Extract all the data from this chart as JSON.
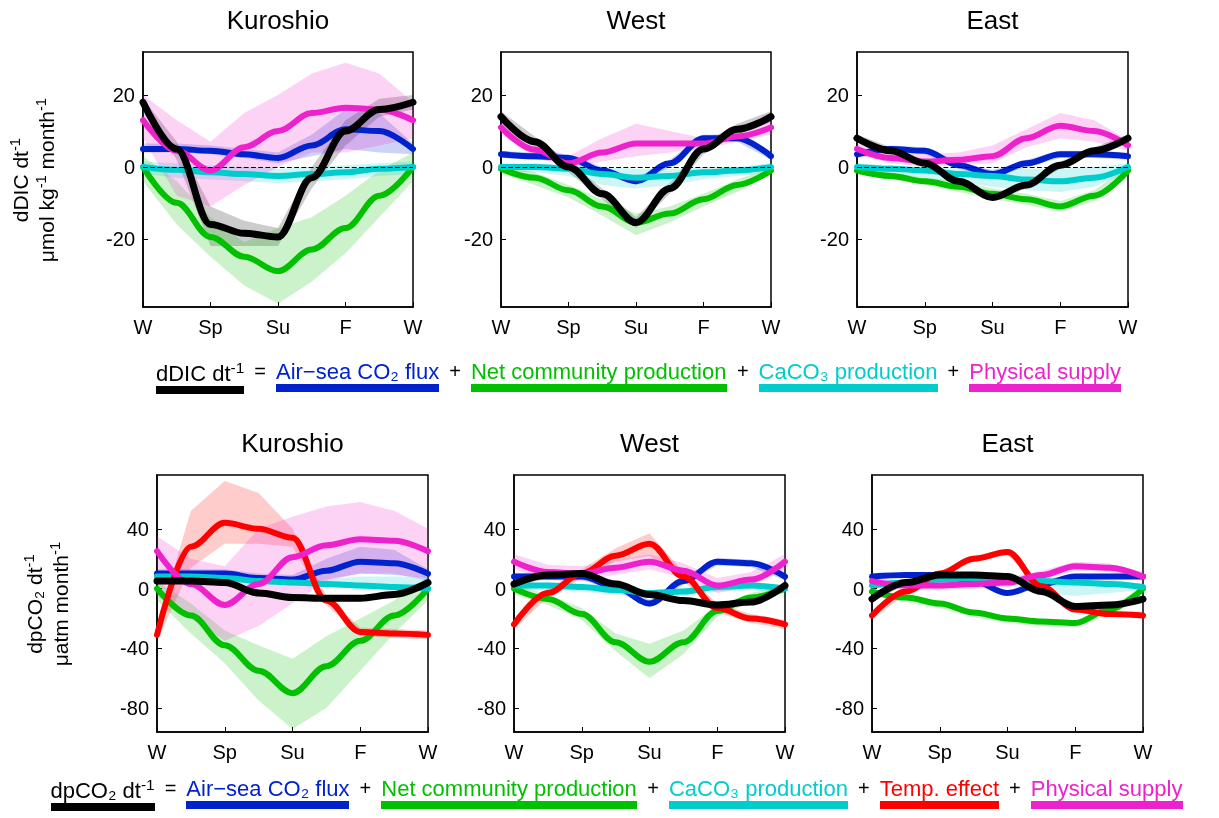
{
  "chart_data": [
    {
      "type": "line",
      "title": "Kuroshio",
      "ylabel": "dDIC dt$^{-1}$\nμmol kg$^{-1}$ month$^{-1}$",
      "legend": "bottom",
      "annotations": [
        "=",
        "+",
        "+",
        "+"
      ],
      "categories": [
        "W",
        null,
        "Sp",
        null,
        "Su",
        null,
        "F",
        null,
        "W"
      ],
      "ylim": [
        -39,
        32
      ],
      "yticks": [
        -20,
        0,
        20
      ],
      "ref_lines": [
        {
          "axis": "y",
          "value": 0,
          "line_style": "dashed",
          "color": "#000000"
        }
      ],
      "series": [
        {
          "name": "dDIC dt$^{-1}$",
          "color": "#000000",
          "values": [
            18,
            5,
            -16,
            -18.5,
            -19.5,
            -3,
            10,
            16,
            18
          ],
          "lower": [
            16,
            2,
            -22,
            -22,
            -22,
            -6,
            6,
            14,
            16
          ],
          "upper": [
            19,
            7,
            -11,
            -15,
            -17,
            0,
            13,
            19,
            20
          ]
        },
        {
          "name": "Air−sea CO₂ flux",
          "color": "#0022cc",
          "values": [
            5,
            5,
            4.5,
            3.5,
            2.5,
            6,
            10.5,
            10,
            5
          ],
          "lower": [
            4,
            4,
            3.5,
            2.5,
            1,
            3,
            5,
            4,
            3.5
          ],
          "upper": [
            6.5,
            6.5,
            6,
            5,
            4,
            9,
            16,
            15,
            6.5
          ]
        },
        {
          "name": "Net community production",
          "color": "#00c000",
          "values": [
            0,
            -10,
            -19.5,
            -25,
            -29,
            -23,
            -17,
            -8,
            0
          ],
          "lower": [
            -4,
            -16,
            -25,
            -33,
            -38,
            -32,
            -24,
            -14,
            -4
          ],
          "upper": [
            3,
            -4,
            -14,
            -21,
            -17,
            -14,
            -8,
            -1,
            4
          ]
        },
        {
          "name": "CaCO₃ production",
          "color": "#00cccc",
          "values": [
            0,
            -0.8,
            -1.5,
            -2,
            -2.5,
            -2,
            -1.5,
            -0.5,
            0
          ],
          "lower": [
            -2,
            -3,
            -3.5,
            -4,
            -4.5,
            -4,
            -3.5,
            -2.5,
            -2
          ],
          "upper": [
            1.5,
            1,
            0.5,
            0,
            -0.5,
            0,
            0.5,
            1,
            1.5
          ]
        },
        {
          "name": "Physical supply",
          "color": "#ee22cc",
          "values": [
            13,
            4.5,
            -1,
            5.5,
            10,
            15,
            16.5,
            16,
            13
          ],
          "lower": [
            8,
            -8,
            -11,
            -5,
            0,
            4,
            4,
            6,
            8
          ],
          "upper": [
            20,
            13,
            7,
            15,
            20,
            26,
            29,
            26,
            18
          ]
        }
      ]
    },
    {
      "type": "line",
      "title": "West",
      "categories": [
        "W",
        null,
        "Sp",
        null,
        "Su",
        null,
        "F",
        null,
        "W"
      ],
      "ylim": [
        -39,
        32
      ],
      "yticks": [
        -20,
        0,
        20
      ],
      "ref_lines": [
        {
          "axis": "y",
          "value": 0,
          "line_style": "dashed",
          "color": "#000000"
        }
      ],
      "series": [
        {
          "color": "#000000",
          "values": [
            14,
            7,
            0,
            -7.5,
            -15.5,
            -6,
            5,
            10.5,
            14
          ],
          "lower": [
            12.5,
            5.5,
            -1.5,
            -9,
            -17,
            -7.5,
            3.5,
            9,
            12.5
          ],
          "upper": [
            15.5,
            8.5,
            1.5,
            -6,
            -14,
            -4.5,
            6.5,
            12,
            15.5
          ]
        },
        {
          "color": "#0022cc",
          "values": [
            3.5,
            3,
            2.5,
            -1,
            -4,
            1,
            8,
            8,
            3
          ],
          "lower": [
            2.5,
            2,
            1.5,
            -2,
            -5,
            0,
            7,
            7,
            2
          ],
          "upper": [
            4.5,
            4,
            3.5,
            0,
            -3,
            2,
            9,
            9,
            4
          ]
        },
        {
          "color": "#00c000",
          "values": [
            -0.5,
            -3,
            -6.5,
            -11,
            -15.5,
            -13,
            -9,
            -5,
            -1
          ],
          "lower": [
            -2,
            -5,
            -8.5,
            -13.5,
            -19,
            -15.5,
            -11,
            -7,
            -2
          ],
          "upper": [
            0.5,
            -1.5,
            -5,
            -9,
            -13,
            -11,
            -7.5,
            -3.5,
            0
          ]
        },
        {
          "color": "#00cccc",
          "values": [
            0,
            0,
            -0.5,
            -2,
            -3,
            -2.5,
            -1.5,
            -1,
            0
          ],
          "lower": [
            -1.5,
            -1.5,
            -2.5,
            -5,
            -6,
            -5,
            -3.5,
            -2.5,
            -1.5
          ],
          "upper": [
            1,
            1,
            0.5,
            0,
            -0.5,
            -0.5,
            0,
            0,
            1
          ]
        },
        {
          "color": "#ee22cc",
          "values": [
            11,
            4.8,
            1,
            4,
            6.5,
            6.5,
            6.5,
            8.5,
            11
          ],
          "lower": [
            9,
            3,
            -0.5,
            1.5,
            3,
            4,
            5,
            7,
            9
          ],
          "upper": [
            13,
            6.5,
            3,
            8,
            12,
            10,
            8,
            10.5,
            13
          ]
        }
      ]
    },
    {
      "type": "line",
      "title": "East",
      "categories": [
        "W",
        null,
        "Sp",
        null,
        "Su",
        null,
        "F",
        null,
        "W"
      ],
      "ylim": [
        -39,
        32
      ],
      "yticks": [
        -20,
        0,
        20
      ],
      "ref_lines": [
        {
          "axis": "y",
          "value": 0,
          "line_style": "dashed",
          "color": "#000000"
        }
      ],
      "series": [
        {
          "color": "#000000",
          "values": [
            8,
            4.5,
            1,
            -4,
            -8.5,
            -5,
            0.5,
            4.5,
            8
          ],
          "lower": [
            7,
            3.5,
            0,
            -5,
            -9.5,
            -6,
            -0.5,
            3.5,
            7
          ],
          "upper": [
            9,
            5.5,
            2,
            -3,
            -7.5,
            -4,
            1.5,
            5.5,
            9
          ]
        },
        {
          "color": "#0022cc",
          "values": [
            3.5,
            5,
            4.5,
            0.5,
            -2,
            1,
            3.5,
            3.5,
            3
          ],
          "lower": [
            2.5,
            4,
            3.5,
            -0.5,
            -3,
            0,
            2.5,
            2.5,
            2
          ],
          "upper": [
            4.5,
            6,
            5.5,
            1.5,
            -1,
            2,
            4.5,
            4.5,
            4
          ]
        },
        {
          "color": "#00c000",
          "values": [
            -1,
            -2.5,
            -4,
            -5.5,
            -7.5,
            -9,
            -11,
            -8,
            -1
          ],
          "lower": [
            -2,
            -3.5,
            -5,
            -7,
            -9,
            -10.5,
            -12.5,
            -9.5,
            -2
          ],
          "upper": [
            0,
            -1.5,
            -3,
            -4,
            -6,
            -7.5,
            -9.5,
            -6.5,
            0
          ]
        },
        {
          "color": "#00cccc",
          "values": [
            0,
            -0.5,
            -1,
            -2,
            -2.5,
            -3.5,
            -4,
            -3,
            0
          ],
          "lower": [
            -1.5,
            -2,
            -3,
            -4.5,
            -5.5,
            -6.5,
            -7,
            -5.5,
            -1.5
          ],
          "upper": [
            1,
            0.5,
            0,
            -0.5,
            -0.5,
            -0.5,
            -0.5,
            0,
            1
          ]
        },
        {
          "color": "#ee22cc",
          "values": [
            5,
            2.5,
            1.5,
            2,
            3,
            8,
            11.5,
            10,
            6
          ],
          "lower": [
            3.5,
            1,
            0,
            0.5,
            1,
            5.5,
            8,
            7,
            4.5
          ],
          "upper": [
            6.5,
            4,
            3.5,
            4,
            6,
            10.5,
            15,
            13,
            7.5
          ]
        }
      ]
    },
    {
      "type": "line",
      "title": "Kuroshio",
      "ylabel": "dpCO₂ dt$^{-1}$\nμatm month$^{-1}$",
      "legend": "bottom",
      "annotations": [
        "=",
        "+",
        "+",
        "+",
        "+"
      ],
      "categories": [
        "W",
        null,
        "Sp",
        null,
        "Su",
        null,
        "F",
        null,
        "W"
      ],
      "ylim": [
        -96,
        76
      ],
      "yticks": [
        -80,
        -40,
        0,
        40
      ],
      "series": [
        {
          "name": "dpCO₂ dt$^{-1}$",
          "color": "#000000",
          "values": [
            5,
            5,
            4,
            -3,
            -6,
            -6.5,
            -6.5,
            -4,
            4
          ],
          "lower": [
            3,
            3,
            2,
            -5,
            -8,
            -8.5,
            -8.5,
            -6,
            2
          ],
          "upper": [
            7,
            7,
            6,
            -1,
            -4,
            -4.5,
            -4.5,
            -2,
            6
          ]
        },
        {
          "name": "Air−sea CO₂ flux",
          "color": "#0022cc",
          "values": [
            10,
            10,
            10,
            7,
            6,
            12,
            18,
            17,
            10
          ],
          "lower": [
            7,
            7,
            7,
            4,
            3,
            6,
            10,
            9,
            7
          ],
          "upper": [
            13,
            13,
            13,
            10,
            9,
            20,
            28,
            26,
            13
          ]
        },
        {
          "name": "Net community production",
          "color": "#00c000",
          "values": [
            0,
            -18,
            -38,
            -55,
            -70,
            -52,
            -35,
            -18,
            0
          ],
          "lower": [
            -8,
            -30,
            -50,
            -75,
            -94,
            -80,
            -55,
            -30,
            -8
          ],
          "upper": [
            5,
            -10,
            -28,
            -38,
            -47,
            -32,
            -20,
            -8,
            8
          ]
        },
        {
          "name": "CaCO₃ production",
          "color": "#00cccc",
          "values": [
            8,
            8,
            7,
            5,
            4,
            3,
            2,
            1,
            0
          ],
          "lower": [
            6,
            6,
            5,
            3,
            2,
            1,
            0,
            -1,
            -2
          ],
          "upper": [
            10,
            10,
            9,
            7,
            6,
            6,
            8,
            8,
            8
          ]
        },
        {
          "name": "Temp. effect",
          "color": "#ff0000",
          "values": [
            -31,
            28,
            44,
            40,
            34,
            -8,
            -29,
            -30,
            -31
          ],
          "lower": [
            -35,
            14,
            30,
            30,
            28,
            -11,
            -32,
            -33,
            -34
          ],
          "upper": [
            -25,
            52,
            72,
            64,
            40,
            -5,
            -26,
            -27,
            -28
          ]
        },
        {
          "name": "Physical supply",
          "color": "#ee22cc",
          "values": [
            25,
            3,
            -11,
            3,
            21,
            29,
            33,
            32,
            25
          ],
          "lower": [
            -5,
            -20,
            -35,
            -25,
            -10,
            5,
            10,
            10,
            5
          ],
          "upper": [
            35,
            20,
            15,
            40,
            48,
            55,
            58,
            52,
            40
          ]
        }
      ]
    },
    {
      "type": "line",
      "title": "West",
      "categories": [
        "W",
        null,
        "Sp",
        null,
        "Su",
        null,
        "F",
        null,
        "W"
      ],
      "ylim": [
        -96,
        76
      ],
      "yticks": [
        -80,
        -40,
        0,
        40
      ],
      "series": [
        {
          "color": "#000000",
          "values": [
            3,
            9,
            10,
            3,
            -4,
            -8,
            -11,
            -9,
            2
          ],
          "lower": [
            1,
            7,
            8,
            1,
            -6,
            -10,
            -13,
            -11,
            0
          ],
          "upper": [
            5,
            11,
            12,
            5,
            -2,
            -6,
            -9,
            -7,
            4
          ]
        },
        {
          "color": "#0022cc",
          "values": [
            8,
            8,
            8,
            1,
            -10,
            5,
            18,
            17,
            8
          ],
          "lower": [
            5.5,
            5.5,
            5.5,
            -1.5,
            -12.5,
            2.5,
            15.5,
            14.5,
            5.5
          ],
          "upper": [
            10.5,
            10.5,
            10.5,
            3.5,
            -7.5,
            7.5,
            20.5,
            19.5,
            10.5
          ]
        },
        {
          "color": "#00c000",
          "values": [
            0,
            -7,
            -17,
            -36,
            -49,
            -36,
            -15,
            -6,
            0
          ],
          "lower": [
            -4,
            -11,
            -21,
            -42,
            -60,
            -44,
            -19,
            -9,
            -3
          ],
          "upper": [
            3,
            -4,
            -13,
            -30,
            -37,
            -28,
            -11,
            -3,
            3
          ]
        },
        {
          "color": "#00cccc",
          "values": [
            2,
            2,
            1,
            -1,
            -3,
            -2,
            1,
            2,
            0
          ],
          "lower": [
            -1,
            -1,
            -2,
            -4,
            -6,
            -5,
            -2,
            -1,
            -3
          ],
          "upper": [
            4,
            4,
            3,
            1,
            -1,
            0,
            3,
            4,
            2
          ]
        },
        {
          "color": "#ff0000",
          "values": [
            -24,
            -3,
            10,
            22,
            30,
            8,
            -13,
            -20,
            -24
          ],
          "lower": [
            -27,
            -6,
            7,
            18,
            22,
            5,
            -16,
            -23,
            -27
          ],
          "upper": [
            -21,
            0,
            13,
            27,
            37,
            11,
            -10,
            -17,
            -21
          ]
        },
        {
          "color": "#ee22cc",
          "values": [
            18,
            11,
            10,
            14,
            18,
            12,
            2,
            6,
            18
          ],
          "lower": [
            13,
            6,
            5,
            9,
            13,
            7,
            -3,
            1,
            13
          ],
          "upper": [
            23,
            16,
            15,
            19,
            23,
            17,
            7,
            11,
            23
          ]
        }
      ]
    },
    {
      "type": "line",
      "title": "East",
      "categories": [
        "W",
        null,
        "Sp",
        null,
        "Su",
        null,
        "F",
        null,
        "W"
      ],
      "ylim": [
        -96,
        76
      ],
      "yticks": [
        -80,
        -40,
        0,
        40
      ],
      "series": [
        {
          "color": "#000000",
          "values": [
            -7,
            4,
            9,
            9,
            8,
            -2,
            -12,
            -11,
            -7
          ],
          "lower": [
            -8.5,
            2.5,
            7.5,
            7.5,
            6.5,
            -3.5,
            -13.5,
            -12.5,
            -8.5
          ],
          "upper": [
            -5.5,
            5.5,
            10.5,
            10.5,
            9.5,
            -0.5,
            -10.5,
            -9.5,
            -5.5
          ]
        },
        {
          "color": "#0022cc",
          "values": [
            8,
            9,
            9,
            5,
            -3,
            3,
            8,
            8,
            8
          ],
          "lower": [
            6.5,
            7.5,
            7.5,
            3.5,
            -4.5,
            1.5,
            6.5,
            6.5,
            6.5
          ],
          "upper": [
            9.5,
            10.5,
            10.5,
            6.5,
            -1.5,
            4.5,
            9.5,
            9.5,
            9.5
          ]
        },
        {
          "color": "#00c000",
          "values": [
            -2,
            -6,
            -10,
            -16,
            -20,
            -22,
            -23,
            -14,
            0
          ],
          "lower": [
            -5,
            -9,
            -13,
            -19,
            -23,
            -25,
            -26,
            -17,
            -3
          ],
          "upper": [
            -0.5,
            -4.5,
            -8.5,
            -14.5,
            -18.5,
            -20.5,
            -21.5,
            -12.5,
            1.5
          ]
        },
        {
          "color": "#00cccc",
          "values": [
            2,
            4,
            6,
            7,
            6,
            5,
            4,
            3,
            1
          ],
          "lower": [
            0,
            2,
            4,
            5,
            2,
            -3,
            -5,
            -3,
            -1
          ],
          "upper": [
            4,
            6,
            8,
            9,
            9,
            8,
            7,
            6,
            3
          ]
        },
        {
          "color": "#ff0000",
          "values": [
            -18,
            -2,
            10,
            20,
            24.5,
            1.5,
            -14,
            -17,
            -18
          ],
          "lower": [
            -20,
            -4,
            8,
            18,
            22.5,
            -0.5,
            -16,
            -19,
            -20
          ],
          "upper": [
            -16,
            0,
            12,
            22,
            26.5,
            3.5,
            -12,
            -15,
            -16
          ]
        },
        {
          "color": "#ee22cc",
          "values": [
            5,
            2,
            2,
            3,
            4,
            9,
            15,
            14,
            8
          ],
          "lower": [
            2,
            -1,
            -1,
            0,
            1,
            6,
            12,
            11,
            5
          ],
          "upper": [
            8,
            5,
            5,
            6,
            7,
            12,
            18,
            17,
            11
          ]
        }
      ]
    }
  ]
}
